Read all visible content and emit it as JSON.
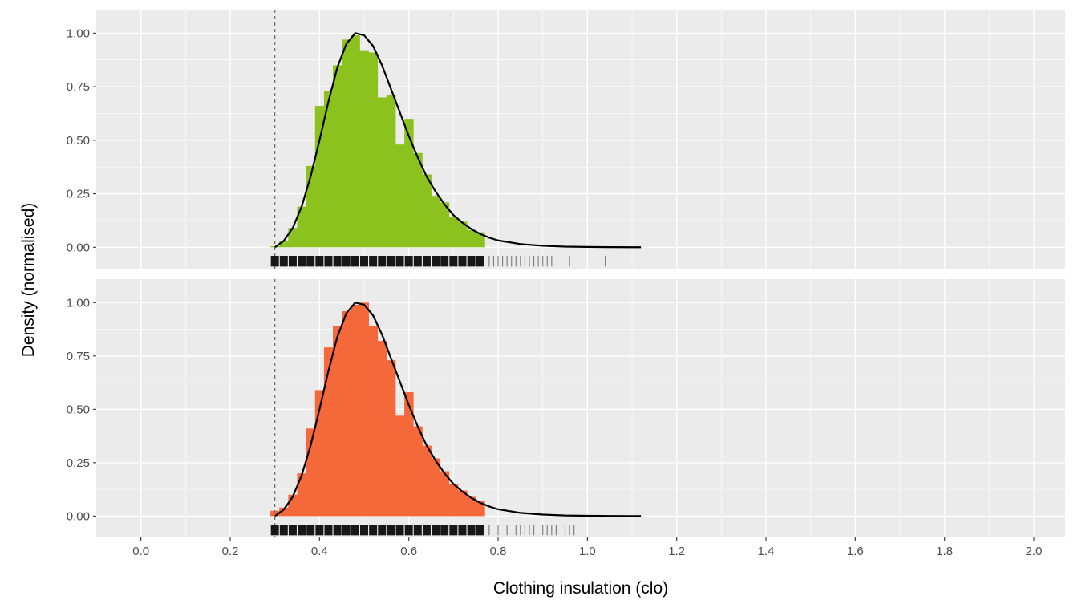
{
  "chart_data": {
    "type": "histogram",
    "xlabel": "Clothing insulation (clo)",
    "ylabel": "Density (normalised)",
    "xlim": [
      -0.1,
      2.07
    ],
    "ylim": [
      -0.1,
      1.11
    ],
    "x_ticks": [
      0.0,
      0.2,
      0.4,
      0.6,
      0.8,
      1.0,
      1.2,
      1.4,
      1.6,
      1.8,
      2.0
    ],
    "x_tick_labels": [
      "0.0",
      "0.2",
      "0.4",
      "0.6",
      "0.8",
      "1.0",
      "1.2",
      "1.4",
      "1.6",
      "1.8",
      "2.0"
    ],
    "y_ticks": [
      0,
      0.25,
      0.5,
      0.75,
      1.0
    ],
    "y_tick_labels": [
      "0.00",
      "0.25",
      "0.50",
      "0.75",
      "1.00"
    ],
    "grid": true,
    "reference_line_x": 0.3,
    "density_curve": {
      "x": [
        0.3,
        0.32,
        0.34,
        0.36,
        0.38,
        0.4,
        0.42,
        0.44,
        0.46,
        0.48,
        0.5,
        0.52,
        0.54,
        0.56,
        0.58,
        0.6,
        0.62,
        0.64,
        0.66,
        0.68,
        0.7,
        0.72,
        0.74,
        0.76,
        0.78,
        0.8,
        0.85,
        0.9,
        0.95,
        1.0,
        1.05,
        1.1,
        1.12
      ],
      "y": [
        0.0,
        0.03,
        0.09,
        0.19,
        0.33,
        0.5,
        0.68,
        0.84,
        0.95,
        1.0,
        0.99,
        0.94,
        0.85,
        0.74,
        0.63,
        0.52,
        0.42,
        0.33,
        0.26,
        0.2,
        0.15,
        0.115,
        0.085,
        0.062,
        0.045,
        0.032,
        0.015,
        0.007,
        0.003,
        0.0015,
        0.0007,
        0.0003,
        0.0002
      ]
    },
    "panels": [
      {
        "name": "top",
        "color": "#8bc21e",
        "bin_width": 0.02,
        "bins_x": [
          0.29,
          0.31,
          0.33,
          0.35,
          0.37,
          0.39,
          0.41,
          0.43,
          0.45,
          0.47,
          0.49,
          0.51,
          0.53,
          0.55,
          0.57,
          0.59,
          0.61,
          0.63,
          0.65,
          0.67,
          0.69,
          0.71,
          0.73,
          0.75
        ],
        "values": [
          0.005,
          0.03,
          0.09,
          0.19,
          0.38,
          0.66,
          0.73,
          0.85,
          0.97,
          0.99,
          0.92,
          0.91,
          0.7,
          0.71,
          0.48,
          0.6,
          0.44,
          0.34,
          0.24,
          0.21,
          0.14,
          0.12,
          0.08,
          0.07
        ],
        "rug_x": [
          0.3,
          0.32,
          0.34,
          0.36,
          0.38,
          0.4,
          0.42,
          0.44,
          0.46,
          0.48,
          0.5,
          0.52,
          0.54,
          0.56,
          0.58,
          0.6,
          0.62,
          0.64,
          0.66,
          0.68,
          0.7,
          0.72,
          0.74,
          0.76,
          0.78,
          0.79,
          0.8,
          0.81,
          0.82,
          0.83,
          0.84,
          0.85,
          0.86,
          0.87,
          0.88,
          0.89,
          0.9,
          0.91,
          0.92,
          0.96,
          1.04
        ]
      },
      {
        "name": "bottom",
        "color": "#f4683a",
        "bin_width": 0.02,
        "bins_x": [
          0.29,
          0.31,
          0.33,
          0.35,
          0.37,
          0.39,
          0.41,
          0.43,
          0.45,
          0.47,
          0.49,
          0.51,
          0.53,
          0.55,
          0.57,
          0.59,
          0.61,
          0.63,
          0.65,
          0.67,
          0.69,
          0.71,
          0.73,
          0.75
        ],
        "values": [
          0.025,
          0.04,
          0.1,
          0.2,
          0.41,
          0.59,
          0.79,
          0.89,
          0.96,
          0.99,
          1.0,
          0.89,
          0.82,
          0.73,
          0.47,
          0.58,
          0.42,
          0.33,
          0.27,
          0.21,
          0.15,
          0.12,
          0.09,
          0.07
        ],
        "rug_x": [
          0.3,
          0.32,
          0.34,
          0.36,
          0.38,
          0.4,
          0.42,
          0.44,
          0.46,
          0.48,
          0.5,
          0.52,
          0.54,
          0.56,
          0.58,
          0.6,
          0.62,
          0.64,
          0.66,
          0.68,
          0.7,
          0.72,
          0.74,
          0.76,
          0.78,
          0.8,
          0.82,
          0.84,
          0.85,
          0.86,
          0.87,
          0.88,
          0.9,
          0.91,
          0.92,
          0.93,
          0.95,
          0.96,
          0.97
        ]
      }
    ]
  }
}
